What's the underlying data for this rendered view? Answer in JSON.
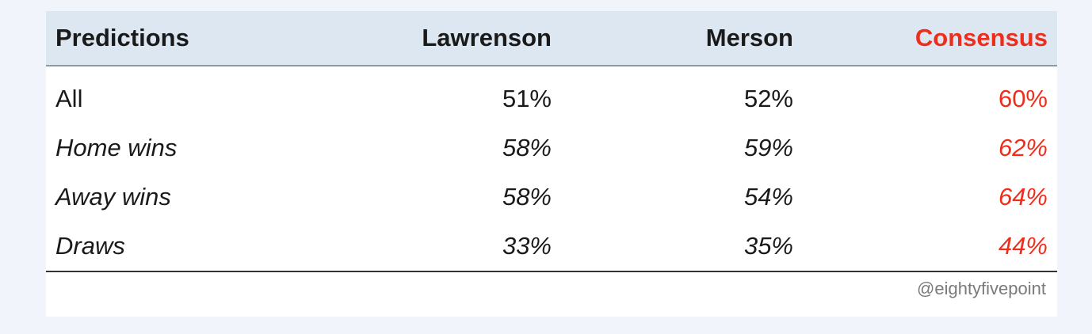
{
  "colors": {
    "consensus": "#ee2e1d",
    "header_bg": "#dde7f2",
    "text": "#1a1a1a"
  },
  "chart_data": {
    "type": "table",
    "columns": [
      "Predictions",
      "Lawrenson",
      "Merson",
      "Consensus"
    ],
    "rows": [
      {
        "label": "All",
        "style": "normal",
        "values": [
          "51%",
          "52%",
          "60%"
        ]
      },
      {
        "label": "Home wins",
        "style": "italic",
        "values": [
          "58%",
          "59%",
          "62%"
        ]
      },
      {
        "label": "Away wins",
        "style": "italic",
        "values": [
          "58%",
          "54%",
          "64%"
        ]
      },
      {
        "label": "Draws",
        "style": "italic",
        "values": [
          "33%",
          "35%",
          "44%"
        ]
      }
    ],
    "footer": "@eightyfivepoint"
  }
}
